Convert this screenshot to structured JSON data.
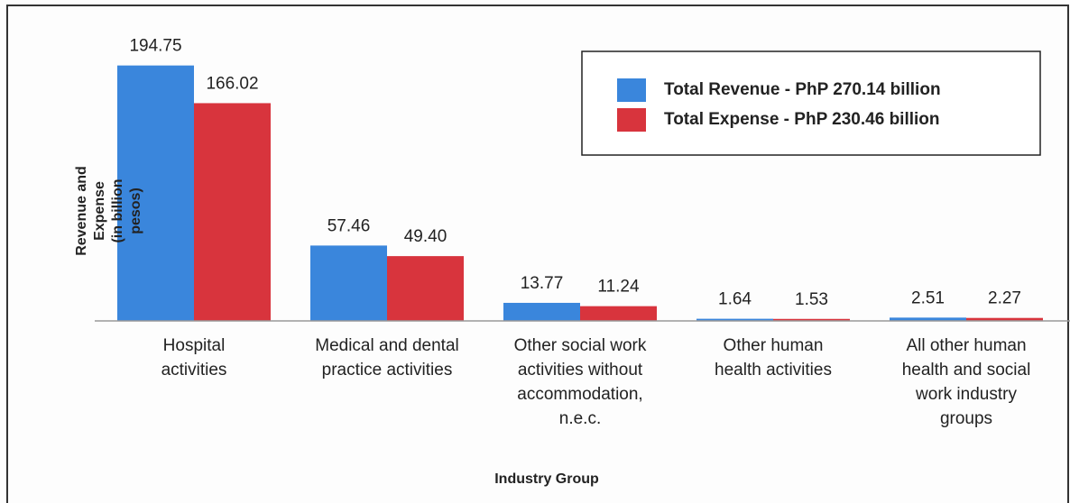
{
  "chart_data": {
    "type": "bar",
    "y_label": "Revenue and Expense\n(in billion pesos)",
    "x_label": "Industry Group",
    "categories": [
      "Hospital\nactivities",
      "Medical and dental\npractice activities",
      "Other social work\nactivities without\naccommodation,\nn.e.c.",
      "Other human\nhealth activities",
      "All other human\nhealth and social\nwork industry\ngroups"
    ],
    "series": [
      {
        "name": "Total Revenue - PhP 270.14 billion",
        "color": "#3a86dc",
        "values": [
          194.75,
          57.46,
          13.77,
          1.64,
          2.51
        ],
        "value_labels": [
          "194.75",
          "57.46",
          "13.77",
          "1.64",
          "2.51"
        ]
      },
      {
        "name": "Total Expense - PhP 230.46 billion",
        "color": "#d8343d",
        "values": [
          166.02,
          49.4,
          11.24,
          1.53,
          2.27
        ],
        "value_labels": [
          "166.02",
          "49.40",
          "11.24",
          "1.53",
          "2.27"
        ]
      }
    ],
    "ylim": [
      0,
      200
    ],
    "legend": "upper right"
  }
}
